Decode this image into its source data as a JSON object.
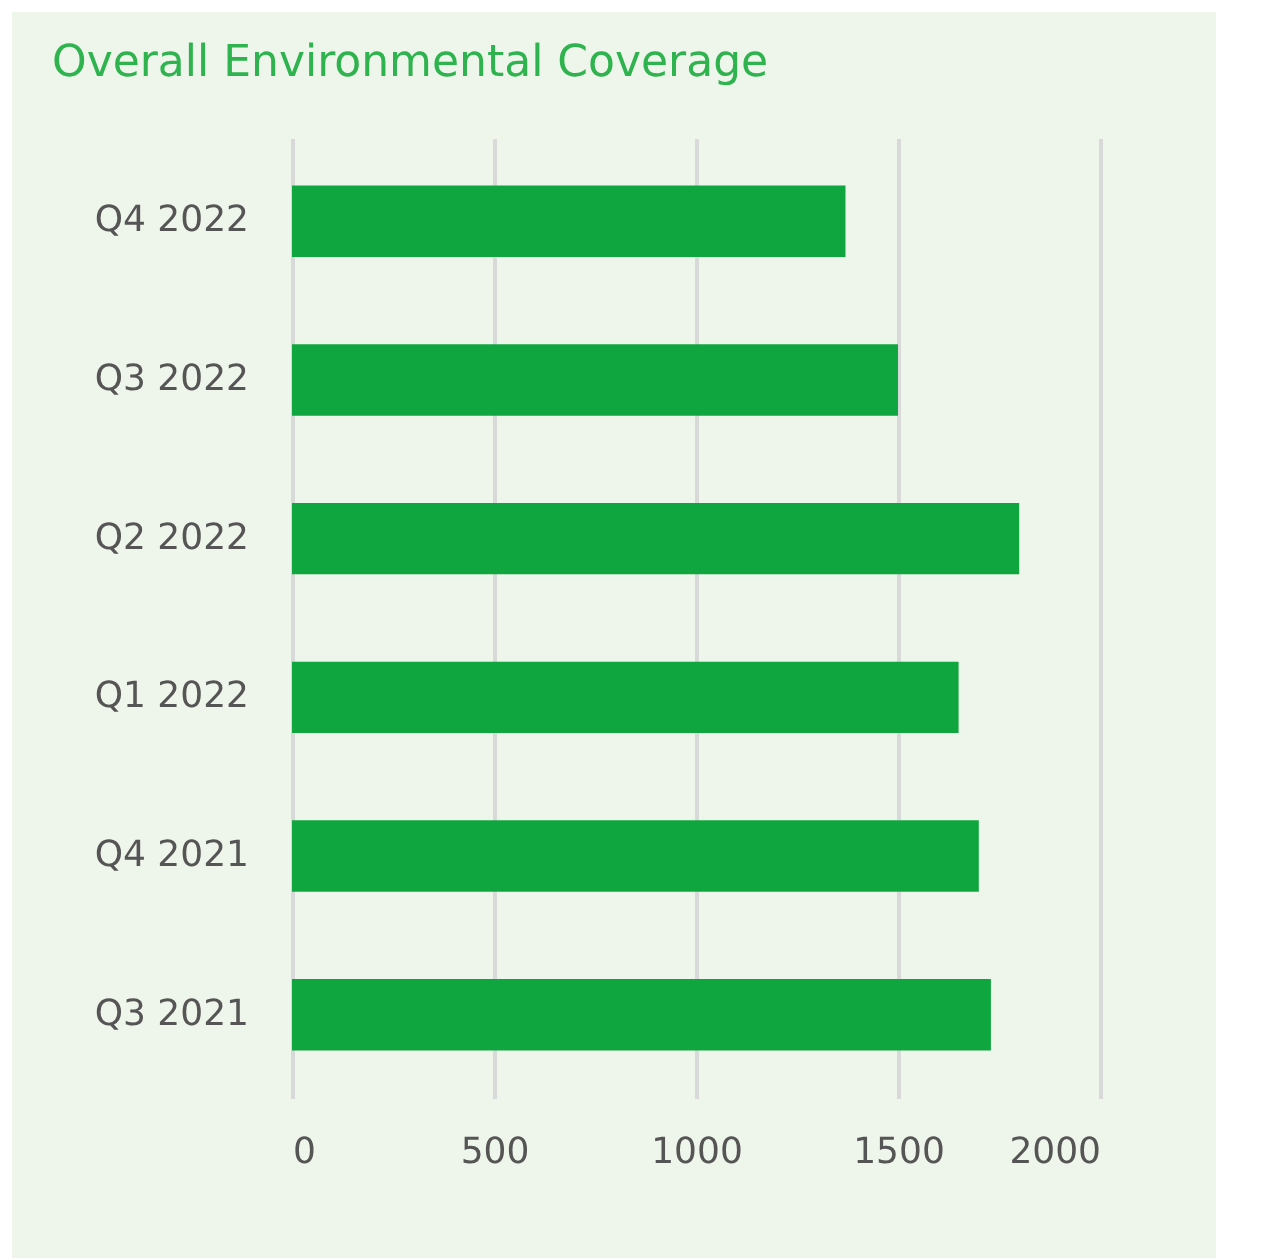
{
  "chart_data": {
    "type": "bar",
    "orientation": "horizontal",
    "title": "Overall Environmental Coverage",
    "categories": [
      "Q4 2022",
      "Q3 2022",
      "Q2 2022",
      "Q1 2022",
      "Q4 2021",
      "Q3 2021"
    ],
    "values": [
      1370,
      1500,
      1800,
      1650,
      1700,
      1730
    ],
    "color": "#10a63f",
    "xlim": [
      0,
      2000
    ],
    "xticks": [
      0,
      500,
      1000,
      1500,
      2000
    ],
    "grid": "x"
  }
}
